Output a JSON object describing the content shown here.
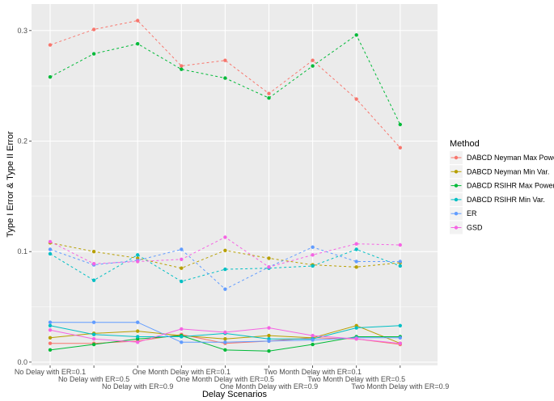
{
  "chart_data": {
    "type": "line",
    "xlabel": "Delay Scenarios",
    "ylabel": "Type I Error & Type II Error",
    "categories": [
      "No Delay with ER=0.1",
      "No Delay with ER=0.5",
      "No Delay with ER=0.9",
      "One Month Delay with ER=0.1",
      "One Month Delay with ER=0.5",
      "One Month Delay with ER=0.9",
      "Two Month Delay with ER=0.1",
      "Two Month Delay with ER=0.5",
      "Two Month Delay with ER=0.9"
    ],
    "ylim": [
      -0.003,
      0.324
    ],
    "yticks": [
      0.0,
      0.1,
      0.2,
      0.3
    ],
    "ytick_labels": [
      "0.0",
      "0.1",
      "0.2",
      "0.3"
    ],
    "grid": true,
    "legend": {
      "title": "Method",
      "placement": "right"
    },
    "series": [
      {
        "name": "DABCD Neyman Max Power",
        "color": "#F8766D",
        "dashed": [
          0.287,
          0.301,
          0.309,
          0.268,
          0.273,
          0.243,
          0.273,
          0.238,
          0.194
        ],
        "solid": [
          0.017,
          0.017,
          0.019,
          0.025,
          0.017,
          0.019,
          0.022,
          0.021,
          0.016
        ]
      },
      {
        "name": "DABCD Neyman Min Var.",
        "color": "#B79F00",
        "dashed": [
          0.108,
          0.1,
          0.094,
          0.085,
          0.101,
          0.094,
          0.088,
          0.086,
          0.09
        ],
        "solid": [
          0.022,
          0.026,
          0.028,
          0.024,
          0.021,
          0.024,
          0.022,
          0.033,
          0.017
        ]
      },
      {
        "name": "DABCD RSIHR Max Power",
        "color": "#00BA38",
        "dashed": [
          0.258,
          0.279,
          0.288,
          0.265,
          0.257,
          0.239,
          0.268,
          0.296,
          0.215
        ],
        "solid": [
          0.011,
          0.016,
          0.021,
          0.024,
          0.011,
          0.01,
          0.016,
          0.023,
          0.023
        ]
      },
      {
        "name": "DABCD RSIHR Min Var.",
        "color": "#00BFC4",
        "dashed": [
          0.098,
          0.074,
          0.097,
          0.073,
          0.084,
          0.085,
          0.087,
          0.102,
          0.087
        ],
        "solid": [
          0.033,
          0.025,
          0.023,
          0.023,
          0.026,
          0.021,
          0.021,
          0.031,
          0.033
        ]
      },
      {
        "name": "ER",
        "color": "#619CFF",
        "dashed": [
          0.102,
          0.088,
          0.092,
          0.102,
          0.066,
          0.086,
          0.104,
          0.091,
          0.091
        ],
        "solid": [
          0.036,
          0.036,
          0.036,
          0.018,
          0.018,
          0.019,
          0.02,
          0.022,
          0.022
        ]
      },
      {
        "name": "GSD",
        "color": "#F564E3",
        "dashed": [
          0.109,
          0.089,
          0.091,
          0.093,
          0.113,
          0.086,
          0.097,
          0.107,
          0.106
        ],
        "solid": [
          0.029,
          0.021,
          0.018,
          0.03,
          0.027,
          0.031,
          0.024,
          0.021,
          0.017
        ]
      }
    ]
  }
}
